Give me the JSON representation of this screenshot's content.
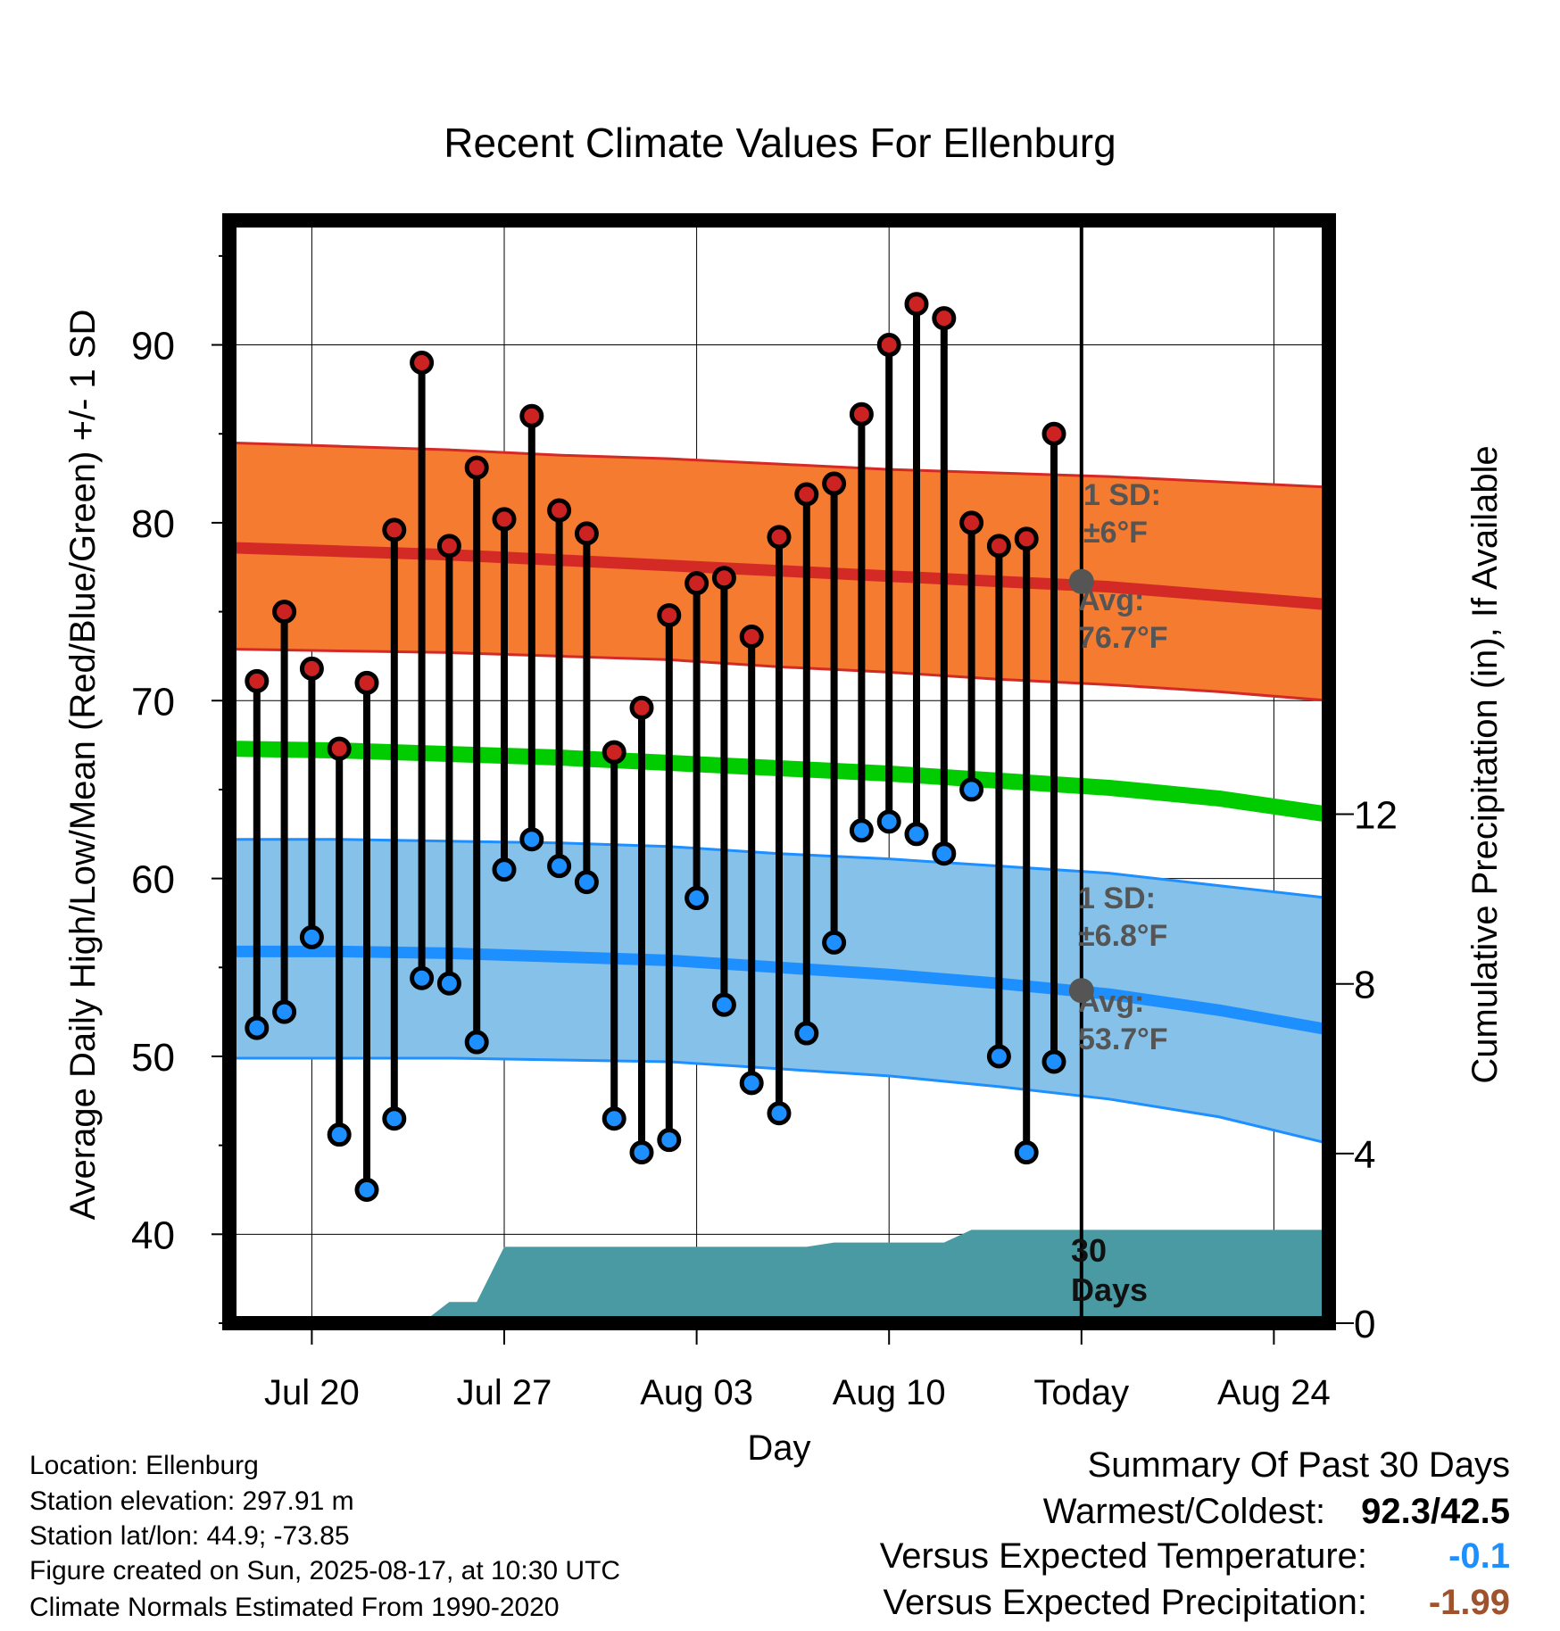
{
  "chart_data": {
    "type": "line",
    "title": "Recent Climate Values For Ellenburg",
    "xlabel": "Day",
    "ylabel": "Average Daily High/Low/Mean (Red/Blue/Green) +/- 1 SD",
    "y2label": "Cumulative Precipitation (in), If Available",
    "ylim": [
      35,
      97
    ],
    "y2lim": [
      0,
      26
    ],
    "yticks": [
      "40",
      "50",
      "60",
      "70",
      "80",
      "90"
    ],
    "y2ticks": [
      "0",
      "4",
      "8",
      "12"
    ],
    "xlim": [
      "2025-07-17",
      "2025-08-26"
    ],
    "xticks": [
      {
        "date": "2025-07-20",
        "label": "Jul 20"
      },
      {
        "date": "2025-07-27",
        "label": "Jul 27"
      },
      {
        "date": "2025-08-03",
        "label": "Aug 03"
      },
      {
        "date": "2025-08-10",
        "label": "Aug 10"
      },
      {
        "date": "2025-08-17",
        "label": "Today"
      },
      {
        "date": "2025-08-24",
        "label": "Aug 24"
      }
    ],
    "today": "2025-08-17",
    "grid": true,
    "observed": [
      {
        "date": "2025-07-18",
        "high": 71.1,
        "low": 51.6
      },
      {
        "date": "2025-07-19",
        "high": 75.0,
        "low": 52.5
      },
      {
        "date": "2025-07-20",
        "high": 71.8,
        "low": 56.7
      },
      {
        "date": "2025-07-21",
        "high": 67.3,
        "low": 45.6
      },
      {
        "date": "2025-07-22",
        "high": 71.0,
        "low": 42.5
      },
      {
        "date": "2025-07-23",
        "high": 79.6,
        "low": 46.5
      },
      {
        "date": "2025-07-24",
        "high": 89.0,
        "low": 54.4
      },
      {
        "date": "2025-07-25",
        "high": 78.7,
        "low": 54.1
      },
      {
        "date": "2025-07-26",
        "high": 83.1,
        "low": 50.8
      },
      {
        "date": "2025-07-27",
        "high": 80.2,
        "low": 60.5
      },
      {
        "date": "2025-07-28",
        "high": 86.0,
        "low": 62.2
      },
      {
        "date": "2025-07-29",
        "high": 80.7,
        "low": 60.7
      },
      {
        "date": "2025-07-30",
        "high": 79.4,
        "low": 59.8
      },
      {
        "date": "2025-07-31",
        "high": 67.1,
        "low": 46.5
      },
      {
        "date": "2025-08-01",
        "high": 69.6,
        "low": 44.6
      },
      {
        "date": "2025-08-02",
        "high": 74.8,
        "low": 45.3
      },
      {
        "date": "2025-08-03",
        "high": 76.6,
        "low": 58.9
      },
      {
        "date": "2025-08-04",
        "high": 76.9,
        "low": 52.9
      },
      {
        "date": "2025-08-05",
        "high": 73.6,
        "low": 48.5
      },
      {
        "date": "2025-08-06",
        "high": 79.2,
        "low": 46.8
      },
      {
        "date": "2025-08-07",
        "high": 81.6,
        "low": 51.3
      },
      {
        "date": "2025-08-08",
        "high": 82.2,
        "low": 56.4
      },
      {
        "date": "2025-08-09",
        "high": 86.1,
        "low": 62.7
      },
      {
        "date": "2025-08-10",
        "high": 90.0,
        "low": 63.2
      },
      {
        "date": "2025-08-11",
        "high": 92.3,
        "low": 62.5
      },
      {
        "date": "2025-08-12",
        "high": 91.5,
        "low": 61.4
      },
      {
        "date": "2025-08-13",
        "high": 80.0,
        "low": 65.0
      },
      {
        "date": "2025-08-14",
        "high": 78.7,
        "low": 50.0
      },
      {
        "date": "2025-08-15",
        "high": 79.1,
        "low": 44.6
      },
      {
        "date": "2025-08-16",
        "high": 85.0,
        "low": 49.7
      }
    ],
    "normals": {
      "dates": [
        "2025-07-17",
        "2025-07-21",
        "2025-07-25",
        "2025-07-29",
        "2025-08-02",
        "2025-08-06",
        "2025-08-10",
        "2025-08-14",
        "2025-08-18",
        "2025-08-22",
        "2025-08-26"
      ],
      "high_mean": [
        78.6,
        78.4,
        78.2,
        77.9,
        77.6,
        77.3,
        77.0,
        76.7,
        76.4,
        75.9,
        75.4
      ],
      "high_upper": [
        84.5,
        84.3,
        84.1,
        83.8,
        83.6,
        83.3,
        83.0,
        82.8,
        82.6,
        82.3,
        82.0
      ],
      "high_lower": [
        72.9,
        72.8,
        72.7,
        72.5,
        72.3,
        71.9,
        71.6,
        71.2,
        70.9,
        70.5,
        70.0
      ],
      "mean": [
        67.3,
        67.2,
        67.0,
        66.8,
        66.5,
        66.2,
        65.9,
        65.5,
        65.1,
        64.5,
        63.6
      ],
      "low_mean": [
        55.9,
        55.9,
        55.8,
        55.6,
        55.4,
        55.0,
        54.6,
        54.1,
        53.5,
        52.6,
        51.5
      ],
      "low_upper": [
        62.2,
        62.2,
        62.1,
        62.0,
        61.8,
        61.4,
        61.1,
        60.7,
        60.3,
        59.6,
        58.9
      ],
      "low_lower": [
        49.9,
        49.9,
        49.9,
        49.8,
        49.7,
        49.3,
        48.9,
        48.3,
        47.6,
        46.6,
        45.1
      ]
    },
    "precip_cumulative": [
      {
        "date": "2025-07-17",
        "value": 0.0
      },
      {
        "date": "2025-07-21",
        "value": 0.0
      },
      {
        "date": "2025-07-24",
        "value": 0.0
      },
      {
        "date": "2025-07-25",
        "value": 0.5
      },
      {
        "date": "2025-07-26",
        "value": 0.5
      },
      {
        "date": "2025-07-27",
        "value": 1.8
      },
      {
        "date": "2025-07-31",
        "value": 1.8
      },
      {
        "date": "2025-08-06",
        "value": 1.8
      },
      {
        "date": "2025-08-07",
        "value": 1.8
      },
      {
        "date": "2025-08-08",
        "value": 1.9
      },
      {
        "date": "2025-08-10",
        "value": 1.9
      },
      {
        "date": "2025-08-12",
        "value": 1.9
      },
      {
        "date": "2025-08-13",
        "value": 2.2
      },
      {
        "date": "2025-08-17",
        "value": 2.2
      },
      {
        "date": "2025-08-26",
        "value": 2.2
      }
    ],
    "annotations": {
      "high_sd_label": "1 SD:",
      "high_sd_value": "±6°F",
      "high_avg_label": "Avg:",
      "high_avg_value": "76.7°F",
      "high_avg_today": 76.7,
      "low_sd_label": "1 SD:",
      "low_sd_value": "±6.8°F",
      "low_avg_label": "Avg:",
      "low_avg_value": "53.7°F",
      "low_avg_today": 53.7,
      "days_label_1": "30",
      "days_label_2": "Days"
    },
    "colors": {
      "high_band": "#f47b30",
      "high_line": "#d42a26",
      "mean_line": "#00cc00",
      "low_band": "#85c1e8",
      "low_line": "#1e8fff",
      "precip": "#4a9aa3",
      "high_point": "#cc2222",
      "low_point": "#1e8fff",
      "annotation": "#555555"
    }
  },
  "info": {
    "location": "Location: Ellenburg",
    "elevation": "Station elevation: 297.91 m",
    "latlon": "Station lat/lon: 44.9; -73.85",
    "created": "Figure created on Sun, 2025-08-17, at 10:30 UTC",
    "normals": "Climate Normals Estimated From 1990-2020"
  },
  "summary": {
    "title": "Summary Of Past 30 Days",
    "warm_cold_label": "Warmest/Coldest:",
    "warm_cold_value": "92.3/42.5",
    "temp_label": "Versus Expected Temperature:",
    "temp_value": "-0.1",
    "temp_color": "#1e8fff",
    "precip_label": "Versus Expected Precipitation:",
    "precip_value": "-1.99",
    "precip_color": "#a0522d"
  }
}
